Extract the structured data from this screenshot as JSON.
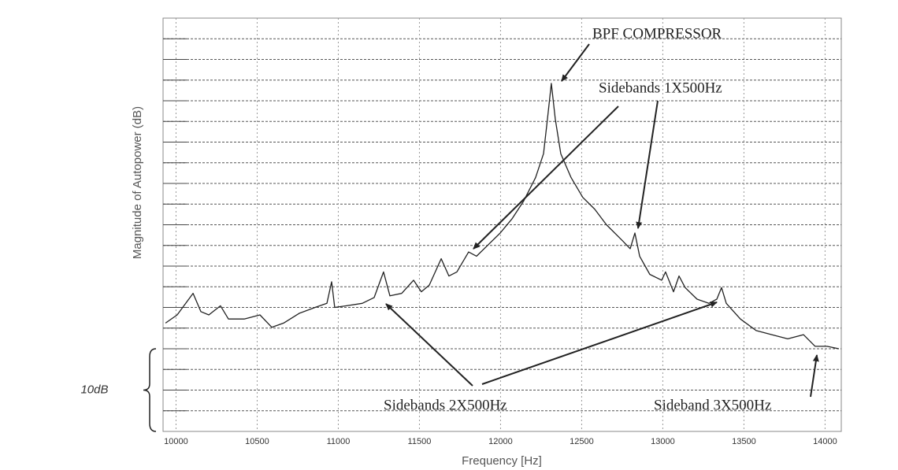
{
  "chart_data": {
    "type": "line",
    "xlabel": "Frequency [Hz]",
    "ylabel": "Magnitude of Autopower (dB)",
    "xlim": [
      9920,
      14100
    ],
    "xticks": [
      10000,
      10500,
      11000,
      11500,
      12000,
      12500,
      13000,
      13500,
      14000
    ],
    "ylim": [
      0,
      50
    ],
    "yticks": [
      2.5,
      5,
      7.5,
      10,
      12.5,
      15,
      17.5,
      20,
      22.5,
      25,
      27.5,
      30,
      32.5,
      35,
      37.5,
      40,
      42.5,
      45,
      47.5
    ],
    "grid": true,
    "color": "#222222",
    "x": [
      9935,
      10007,
      10105,
      10153,
      10202,
      10274,
      10323,
      10420,
      10517,
      10590,
      10663,
      10760,
      10857,
      10930,
      10959,
      10978,
      11051,
      11148,
      11221,
      11279,
      11318,
      11391,
      11464,
      11512,
      11561,
      11634,
      11682,
      11731,
      11803,
      11852,
      11925,
      11998,
      12070,
      12143,
      12216,
      12265,
      12289,
      12313,
      12337,
      12371,
      12435,
      12507,
      12580,
      12653,
      12750,
      12799,
      12828,
      12857,
      12920,
      12993,
      13017,
      13066,
      13100,
      13138,
      13211,
      13284,
      13333,
      13362,
      13391,
      13478,
      13575,
      13672,
      13770,
      13867,
      13939,
      14012,
      14085
    ],
    "values": [
      13.1,
      14.1,
      16.7,
      14.5,
      14.1,
      15.2,
      13.6,
      13.6,
      14.1,
      12.6,
      13.1,
      14.3,
      15.0,
      15.5,
      18.1,
      15.0,
      15.2,
      15.5,
      16.2,
      19.3,
      16.4,
      16.7,
      18.3,
      16.9,
      17.7,
      20.9,
      18.8,
      19.3,
      21.7,
      21.2,
      22.6,
      24.0,
      25.7,
      27.9,
      30.7,
      33.6,
      37.8,
      42.1,
      37.8,
      33.6,
      30.7,
      28.3,
      26.9,
      25.0,
      23.1,
      22.1,
      24.0,
      21.2,
      19.0,
      18.3,
      19.3,
      16.9,
      18.8,
      17.4,
      16.0,
      15.5,
      16.0,
      17.4,
      15.5,
      13.6,
      12.2,
      11.7,
      11.2,
      11.7,
      10.3,
      10.3,
      10.0
    ],
    "scale_bar": {
      "label": "10dB",
      "value": 10
    },
    "annotations": [
      "BPF COMPRESSOR",
      "Sidebands 1X500Hz",
      "Sidebands 2X500Hz",
      "Sideband 3X500Hz"
    ]
  }
}
